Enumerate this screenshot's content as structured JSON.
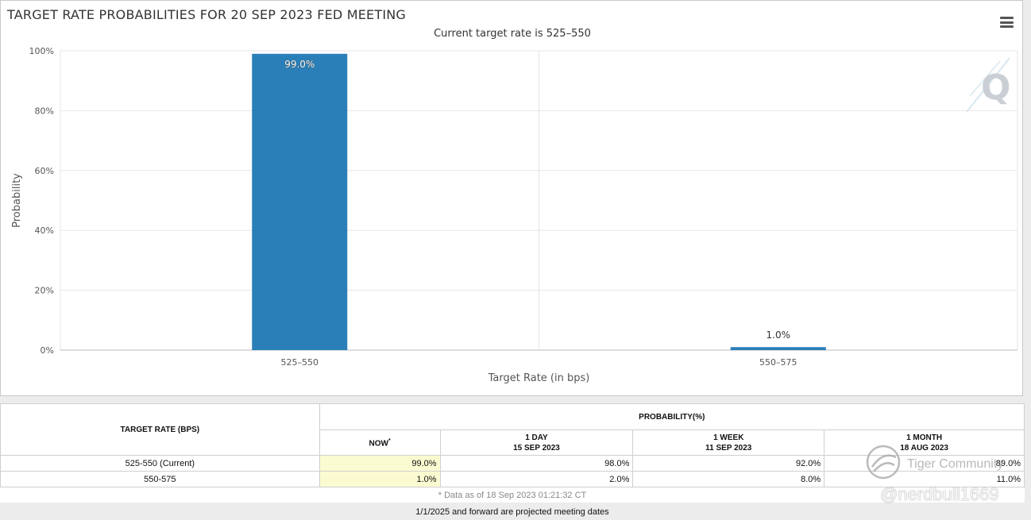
{
  "chart_data": {
    "type": "bar",
    "title": "TARGET RATE PROBABILITIES FOR 20 SEP 2023 FED MEETING",
    "subtitle": "Current target rate is 525–550",
    "categories": [
      "525–550",
      "550–575"
    ],
    "values": [
      99.0,
      1.0
    ],
    "data_labels": [
      "99.0%",
      "1.0%"
    ],
    "xlabel": "Target Rate (in bps)",
    "ylabel": "Probability",
    "ylim": [
      0,
      100
    ],
    "y_ticks": [
      "0%",
      "20%",
      "40%",
      "60%",
      "80%",
      "100%"
    ],
    "grid": true,
    "bar_color": "#2b7fb8"
  },
  "table": {
    "col_target": "TARGET RATE (BPS)",
    "col_probability": "PROBABILITY(%)",
    "sub_headers": [
      {
        "line1": "NOW",
        "sup": "*",
        "line2": ""
      },
      {
        "line1": "1 DAY",
        "line2": "15 SEP 2023"
      },
      {
        "line1": "1 WEEK",
        "line2": "11 SEP 2023"
      },
      {
        "line1": "1 MONTH",
        "line2": "18 AUG 2023"
      }
    ],
    "rows": [
      {
        "rate": "525-550 (Current)",
        "now": "99.0%",
        "day": "98.0%",
        "week": "92.0%",
        "month": "89.0%"
      },
      {
        "rate": "550-575",
        "now": "1.0%",
        "day": "2.0%",
        "week": "8.0%",
        "month": "11.0%"
      }
    ],
    "footnote": "* Data as of 18 Sep 2023 01:21:32 CT"
  },
  "note": "1/1/2025 and forward are projected meeting dates",
  "watermark": {
    "community": "Tiger Community",
    "handle": "@nerdbull1669"
  },
  "icons": {
    "menu": "hamburger-menu-icon",
    "logo": "q-logo-icon"
  }
}
